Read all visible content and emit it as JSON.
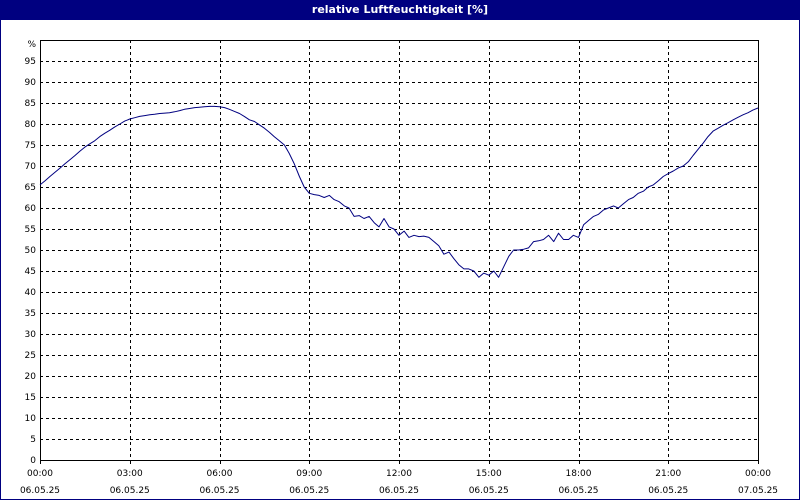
{
  "window": {
    "title": "relative Luftfeuchtigkeit [%]"
  },
  "colors": {
    "title_bar": "#000080",
    "series_line": "#000080",
    "grid": "#000000",
    "background": "#ffffff"
  },
  "chart_data": {
    "type": "line",
    "title": "relative Luftfeuchtigkeit [%]",
    "ylabel": "%",
    "ylim": [
      0,
      100
    ],
    "yticks": [
      0,
      5,
      10,
      15,
      20,
      25,
      30,
      35,
      40,
      45,
      50,
      55,
      60,
      65,
      70,
      75,
      80,
      85,
      90,
      95
    ],
    "xlim_hours": [
      0,
      24
    ],
    "xticks": [
      {
        "time": "00:00",
        "date": "06.05.25"
      },
      {
        "time": "03:00",
        "date": "06.05.25"
      },
      {
        "time": "06:00",
        "date": "06.05.25"
      },
      {
        "time": "09:00",
        "date": "06.05.25"
      },
      {
        "time": "12:00",
        "date": "06.05.25"
      },
      {
        "time": "15:00",
        "date": "06.05.25"
      },
      {
        "time": "18:00",
        "date": "06.05.25"
      },
      {
        "time": "21:00",
        "date": "06.05.25"
      },
      {
        "time": "00:00",
        "date": "07.05.25"
      }
    ],
    "grid": true,
    "grid_style": "dashed",
    "series": [
      {
        "color": "#000080",
        "x": [
          0.0,
          0.17,
          0.33,
          0.5,
          0.67,
          0.83,
          1.0,
          1.17,
          1.33,
          1.5,
          1.67,
          1.83,
          2.0,
          2.17,
          2.33,
          2.5,
          2.67,
          2.83,
          3.0,
          3.17,
          3.33,
          3.5,
          3.67,
          3.83,
          4.0,
          4.17,
          4.33,
          4.5,
          4.67,
          4.83,
          5.0,
          5.17,
          5.33,
          5.5,
          5.67,
          5.83,
          6.0,
          6.17,
          6.33,
          6.5,
          6.67,
          6.83,
          7.0,
          7.17,
          7.33,
          7.5,
          7.67,
          7.83,
          8.0,
          8.17,
          8.33,
          8.5,
          8.67,
          8.83,
          9.0,
          9.17,
          9.33,
          9.5,
          9.67,
          9.83,
          10.0,
          10.17,
          10.33,
          10.5,
          10.67,
          10.83,
          11.0,
          11.17,
          11.33,
          11.5,
          11.67,
          11.83,
          12.0,
          12.17,
          12.33,
          12.5,
          12.67,
          12.83,
          13.0,
          13.17,
          13.33,
          13.5,
          13.67,
          13.83,
          14.0,
          14.17,
          14.33,
          14.5,
          14.67,
          14.83,
          15.0,
          15.17,
          15.33,
          15.5,
          15.67,
          15.83,
          16.0,
          16.17,
          16.33,
          16.5,
          16.67,
          16.83,
          17.0,
          17.17,
          17.33,
          17.5,
          17.67,
          17.83,
          18.0,
          18.17,
          18.33,
          18.5,
          18.67,
          18.83,
          19.0,
          19.17,
          19.33,
          19.5,
          19.67,
          19.83,
          20.0,
          20.17,
          20.33,
          20.5,
          20.67,
          20.83,
          21.0,
          21.17,
          21.33,
          21.5,
          21.67,
          21.83,
          22.0,
          22.17,
          22.33,
          22.5,
          22.67,
          22.83,
          23.0,
          23.17,
          23.33,
          23.5,
          23.67,
          23.83,
          24.0
        ],
        "values": [
          65.5,
          66.5,
          67.5,
          68.5,
          69.5,
          70.5,
          71.5,
          72.5,
          73.5,
          74.5,
          75.3,
          76.0,
          77.0,
          77.8,
          78.5,
          79.3,
          80.0,
          80.7,
          81.2,
          81.5,
          81.8,
          82.0,
          82.2,
          82.3,
          82.5,
          82.6,
          82.7,
          82.9,
          83.2,
          83.5,
          83.7,
          83.9,
          84.0,
          84.1,
          84.2,
          84.2,
          84.1,
          83.9,
          83.5,
          83.0,
          82.5,
          81.8,
          81.0,
          80.6,
          79.8,
          79.0,
          78.0,
          77.0,
          76.0,
          75.0,
          73.0,
          70.5,
          67.5,
          65.0,
          63.5,
          63.2,
          63.0,
          62.5,
          63.0,
          62.0,
          61.5,
          60.5,
          60.0,
          58.0,
          58.2,
          57.5,
          58.0,
          56.5,
          55.5,
          57.5,
          55.5,
          55.0,
          53.5,
          54.5,
          53.0,
          53.5,
          53.2,
          53.3,
          53.0,
          52.0,
          51.0,
          49.0,
          49.5,
          48.0,
          46.5,
          45.5,
          45.5,
          45.0,
          43.5,
          44.5,
          44.0,
          45.0,
          43.5,
          46.0,
          48.5,
          50.0,
          50.0,
          50.2,
          50.5,
          52.0,
          52.2,
          52.5,
          53.5,
          52.0,
          54.0,
          52.5,
          52.5,
          53.5,
          53.0,
          56.0,
          57.0,
          58.0,
          58.5,
          59.5,
          60.0,
          60.5,
          60.0,
          61.0,
          62.0,
          62.5,
          63.5,
          64.0,
          65.0,
          65.5,
          66.5,
          67.5,
          68.2,
          68.8,
          69.5,
          70.0,
          71.0,
          72.5,
          74.0,
          75.5,
          77.0,
          78.3,
          79.0,
          79.7,
          80.3,
          81.0,
          81.6,
          82.2,
          82.7,
          83.3,
          83.8
        ]
      }
    ]
  }
}
